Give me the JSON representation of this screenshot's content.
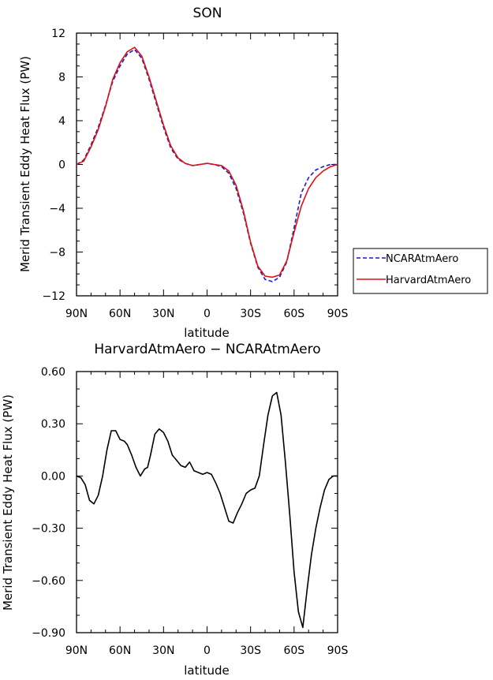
{
  "chart_data": [
    {
      "type": "line",
      "title": "SON",
      "xlabel": "latitude",
      "ylabel": "Merid Transient Eddy Heat Flux (PW)",
      "xlim": [
        90,
        -90
      ],
      "ylim": [
        -12,
        12
      ],
      "x_ticks": [
        90,
        60,
        30,
        0,
        -30,
        -60,
        -90
      ],
      "x_tick_labels": [
        "90N",
        "60N",
        "30N",
        "0",
        "30S",
        "60S",
        "90S"
      ],
      "y_ticks": [
        -12,
        -8,
        -4,
        0,
        4,
        8,
        12
      ],
      "y_tick_labels": [
        "−12",
        "−8",
        "−4",
        "0",
        "4",
        "8",
        "12"
      ],
      "grid": false,
      "legend": "outside-right",
      "x": [
        90,
        85,
        80,
        75,
        70,
        65,
        60,
        55,
        50,
        45,
        40,
        35,
        30,
        25,
        20,
        15,
        10,
        5,
        0,
        -5,
        -10,
        -15,
        -20,
        -25,
        -30,
        -35,
        -40,
        -45,
        -50,
        -55,
        -60,
        -65,
        -70,
        -75,
        -80,
        -85,
        -90
      ],
      "series": [
        {
          "name": "NCARAtmAero",
          "color": "#1a1acc",
          "dash": "dashed",
          "values": [
            0.0,
            0.4,
            1.8,
            3.4,
            5.4,
            7.6,
            9.0,
            10.1,
            10.5,
            9.7,
            7.8,
            5.6,
            3.4,
            1.5,
            0.5,
            0.1,
            -0.1,
            0.0,
            0.1,
            0.0,
            -0.2,
            -0.8,
            -2.2,
            -4.4,
            -7.2,
            -9.4,
            -10.5,
            -10.7,
            -10.3,
            -8.9,
            -5.8,
            -2.6,
            -1.2,
            -0.5,
            -0.2,
            0.0,
            0.0
          ]
        },
        {
          "name": "HarvardAtmAero",
          "color": "#e01010",
          "dash": "solid",
          "values": [
            0.0,
            0.3,
            1.6,
            3.2,
            5.3,
            7.8,
            9.3,
            10.3,
            10.7,
            9.9,
            8.0,
            5.8,
            3.6,
            1.7,
            0.6,
            0.1,
            -0.1,
            0.0,
            0.1,
            0.0,
            -0.1,
            -0.6,
            -1.9,
            -4.2,
            -7.1,
            -9.3,
            -10.2,
            -10.3,
            -10.1,
            -8.8,
            -6.2,
            -3.8,
            -2.2,
            -1.2,
            -0.6,
            -0.2,
            0.0
          ]
        }
      ]
    },
    {
      "type": "line",
      "title": "HarvardAtmAero − NCARAtmAero",
      "xlabel": "latitude",
      "ylabel": "Merid Transient Eddy Heat Flux (PW)",
      "xlim": [
        90,
        -90
      ],
      "ylim": [
        -0.9,
        0.6
      ],
      "x_ticks": [
        90,
        60,
        30,
        0,
        -30,
        -60,
        -90
      ],
      "x_tick_labels": [
        "90N",
        "60N",
        "30N",
        "0",
        "30S",
        "60S",
        "90S"
      ],
      "y_ticks": [
        -0.9,
        -0.6,
        -0.3,
        0,
        0.3,
        0.6
      ],
      "y_tick_labels": [
        "−0.90",
        "−0.60",
        "−0.30",
        "0.00",
        "0.30",
        "0.60"
      ],
      "grid": false,
      "x": [
        90,
        87,
        84,
        81,
        78,
        75,
        72,
        69,
        66,
        63,
        60,
        57,
        55,
        52,
        49,
        46,
        43,
        41,
        39,
        36,
        33,
        30,
        27,
        24,
        21,
        18,
        15,
        12,
        9,
        6,
        3,
        0,
        -3,
        -6,
        -9,
        -12,
        -15,
        -18,
        -21,
        -24,
        -27,
        -30,
        -33,
        -36,
        -39,
        -42,
        -45,
        -48,
        -51,
        -54,
        -57,
        -60,
        -63,
        -66,
        -69,
        -72,
        -75,
        -78,
        -81,
        -84,
        -87,
        -90
      ],
      "series": [
        {
          "name": "",
          "color": "#000000",
          "dash": "solid",
          "values": [
            0.0,
            -0.01,
            -0.05,
            -0.14,
            -0.16,
            -0.11,
            0.0,
            0.15,
            0.26,
            0.26,
            0.21,
            0.2,
            0.18,
            0.12,
            0.05,
            0.0,
            0.04,
            0.05,
            0.12,
            0.24,
            0.27,
            0.25,
            0.2,
            0.12,
            0.09,
            0.06,
            0.05,
            0.08,
            0.03,
            0.02,
            0.01,
            0.02,
            0.01,
            -0.04,
            -0.1,
            -0.18,
            -0.26,
            -0.27,
            -0.21,
            -0.16,
            -0.1,
            -0.08,
            -0.07,
            0.0,
            0.18,
            0.35,
            0.46,
            0.48,
            0.35,
            0.08,
            -0.22,
            -0.55,
            -0.78,
            -0.87,
            -0.65,
            -0.45,
            -0.3,
            -0.18,
            -0.08,
            -0.02,
            0.0,
            0.0
          ]
        }
      ]
    }
  ]
}
